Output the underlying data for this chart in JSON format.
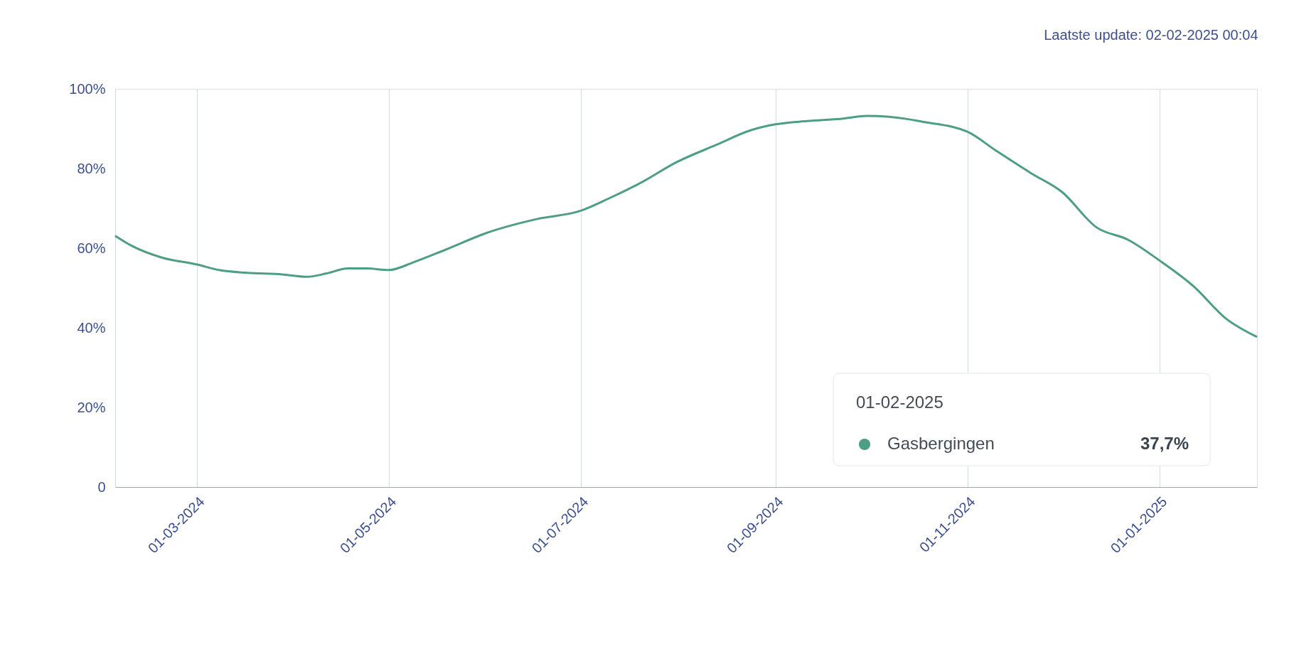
{
  "chart_data": {
    "type": "line",
    "annotations": [
      "Laatste update: 02-02-2025 00:04",
      "01-02-2025",
      "37,7%"
    ],
    "x": [
      "2024-02-04",
      "2024-02-09",
      "2024-02-19",
      "2024-03-01",
      "2024-03-08",
      "2024-03-17",
      "2024-03-28",
      "2024-04-05",
      "2024-04-11",
      "2024-04-18",
      "2024-04-24",
      "2024-05-01",
      "2024-05-09",
      "2024-05-19",
      "2024-06-01",
      "2024-06-17",
      "2024-07-01",
      "2024-07-10",
      "2024-07-21",
      "2024-07-31",
      "2024-08-13",
      "2024-08-24",
      "2024-09-01",
      "2024-09-11",
      "2024-09-22",
      "2024-09-30",
      "2024-10-07",
      "2024-10-18",
      "2024-11-01",
      "2024-11-10",
      "2024-11-21",
      "2024-12-01",
      "2024-12-12",
      "2024-12-22",
      "2025-01-01",
      "2025-01-12",
      "2025-01-22",
      "2025-02-01"
    ],
    "series": [
      {
        "name": "Gasbergingen",
        "color": "#4e9e85",
        "values": [
          63.1,
          60.7,
          57.6,
          55.9,
          54.5,
          53.8,
          53.4,
          52.8,
          53.6,
          54.9,
          54.9,
          54.5,
          56.5,
          59.6,
          63.8,
          67.3,
          69.4,
          72.5,
          76.8,
          81.4,
          85.9,
          89.6,
          91.1,
          91.9,
          92.5,
          93.2,
          93.0,
          91.7,
          89.2,
          84.5,
          78.9,
          74.1,
          65.2,
          62.1,
          56.9,
          50.3,
          42.4,
          37.7
        ]
      }
    ],
    "xlim": [
      "2024-02-04",
      "2025-02-01"
    ],
    "xticks": [
      {
        "value": "2024-03-01",
        "label": "01-03-2024"
      },
      {
        "value": "2024-05-01",
        "label": "01-05-2024"
      },
      {
        "value": "2024-07-01",
        "label": "01-07-2024"
      },
      {
        "value": "2024-09-01",
        "label": "01-09-2024"
      },
      {
        "value": "2024-11-01",
        "label": "01-11-2024"
      },
      {
        "value": "2025-01-01",
        "label": "01-01-2025"
      }
    ],
    "ylim": [
      0,
      100
    ],
    "yticks": [
      0,
      {
        "value": 20,
        "label": "20%"
      },
      {
        "value": 40,
        "label": "40%"
      },
      {
        "value": 60,
        "label": "60%"
      },
      {
        "value": 80,
        "label": "80%"
      },
      {
        "value": 100,
        "label": "100%"
      }
    ],
    "grid": "x",
    "legend": "bottom right",
    "marker": "none",
    "line_style": "solid"
  }
}
